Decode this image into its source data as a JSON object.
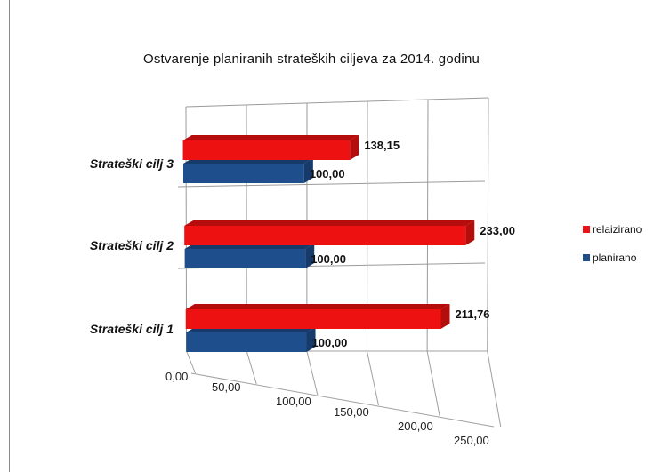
{
  "chart_data": {
    "type": "bar",
    "orientation": "horizontal",
    "style": "3d-perspective",
    "title": "Ostvarenje planiranih strateških ciljeva za 2014. godinu",
    "categories": [
      "Strateški cilj 3",
      "Strateški cilj 2",
      "Strateški cilj 1"
    ],
    "series": [
      {
        "name": "relaizirano",
        "color": "#ee1111",
        "values": [
          138.15,
          233.0,
          211.76
        ],
        "labels": [
          "138,15",
          "233,00",
          "211,76"
        ]
      },
      {
        "name": "planirano",
        "color": "#1f4e8c",
        "values": [
          100.0,
          100.0,
          100.0
        ],
        "labels": [
          "100,00",
          "100,00",
          "100,00"
        ]
      }
    ],
    "x_ticks": [
      "0,00",
      "50,00",
      "100,00",
      "150,00",
      "200,00",
      "250,00"
    ],
    "xlim": [
      0,
      250
    ],
    "legend_position": "right",
    "grid": true
  }
}
